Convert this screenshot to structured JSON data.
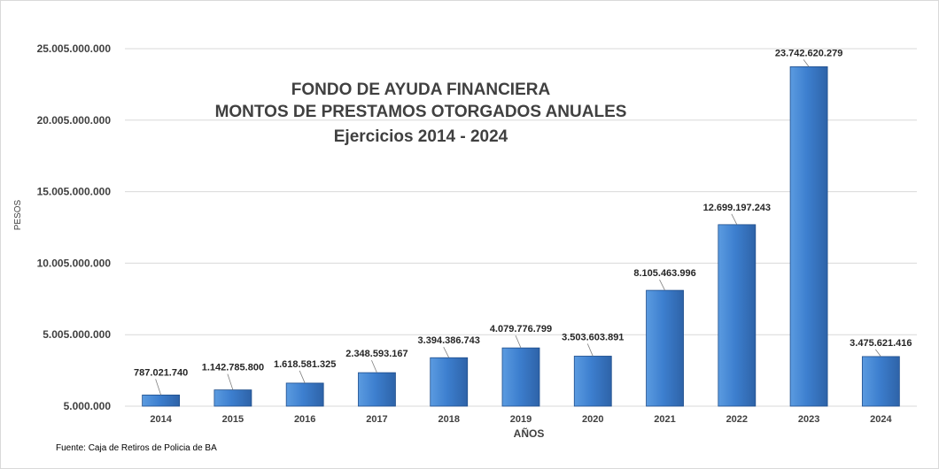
{
  "chart_data": {
    "type": "bar",
    "title_lines": [
      "FONDO DE AYUDA FINANCIERA",
      "MONTOS  DE  PRESTAMOS  OTORGADOS  ANUALES",
      "Ejercicios  2014 - 2024"
    ],
    "xlabel": "AÑOS",
    "ylabel": "PESOS",
    "source": "Fuente: Caja de Retiros de Policia de BA",
    "categories": [
      "2014",
      "2015",
      "2016",
      "2017",
      "2018",
      "2019",
      "2020",
      "2021",
      "2022",
      "2023",
      "2024"
    ],
    "values": [
      787021740,
      1142785800,
      1618581325,
      2348593167,
      3394386743,
      4079776799,
      3503603891,
      8105463996,
      12699197243,
      23742620279,
      3475621416
    ],
    "value_labels": [
      "787.021.740",
      "1.142.785.800",
      "1.618.581.325",
      "2.348.593.167",
      "3.394.386.743",
      "4.079.776.799",
      "3.503.603.891",
      "8.105.463.996",
      "12.699.197.243",
      "23.742.620.279",
      "3.475.621.416"
    ],
    "yticks": [
      5000000,
      5005000000,
      10005000000,
      15005000000,
      20005000000,
      25005000000
    ],
    "ytick_labels": [
      "5.000.000",
      "5.005.000.000",
      "10.005.000.000",
      "15.005.000.000",
      "20.005.000.000",
      "25.005.000.000"
    ],
    "ylim": [
      5000000,
      25005000000
    ],
    "grid": true,
    "legend": "none",
    "colors": {
      "bar_top": "#5b9be0",
      "bar_mid": "#3d7fcf",
      "bar_bottom": "#2e63a8",
      "bar_edge": "#1f4e8c",
      "grid": "#d9d9d9",
      "text": "#404040"
    }
  }
}
